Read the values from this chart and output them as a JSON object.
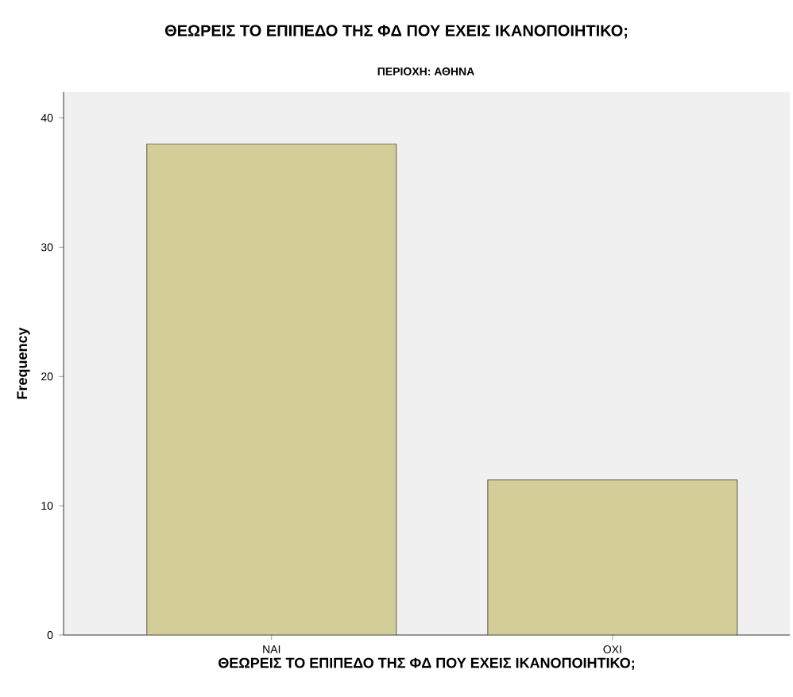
{
  "chart_data": {
    "type": "bar",
    "title": "ΘΕΩΡΕΙΣ ΤΟ ΕΠΙΠΕΔΟ ΤΗΣ ΦΔ ΠΟΥ ΕΧΕΙΣ ΙΚΑΝΟΠΟΙΗΤΙΚΟ;",
    "subtitle": "ΠΕΡΙΟΧΗ: ΑΘΗΝΑ",
    "xlabel": "ΘΕΩΡΕΙΣ ΤΟ ΕΠΙΠΕΔΟ ΤΗΣ ΦΔ ΠΟΥ ΕΧΕΙΣ ΙΚΑΝΟΠΟΙΗΤΙΚΟ;",
    "ylabel": "Frequency",
    "categories": [
      "ΝΑΙ",
      "ΟΧΙ"
    ],
    "values": [
      38,
      12
    ],
    "color": "#d3ce98",
    "ylim": [
      0,
      42
    ],
    "yticks": [
      0,
      10,
      20,
      30,
      40
    ]
  }
}
